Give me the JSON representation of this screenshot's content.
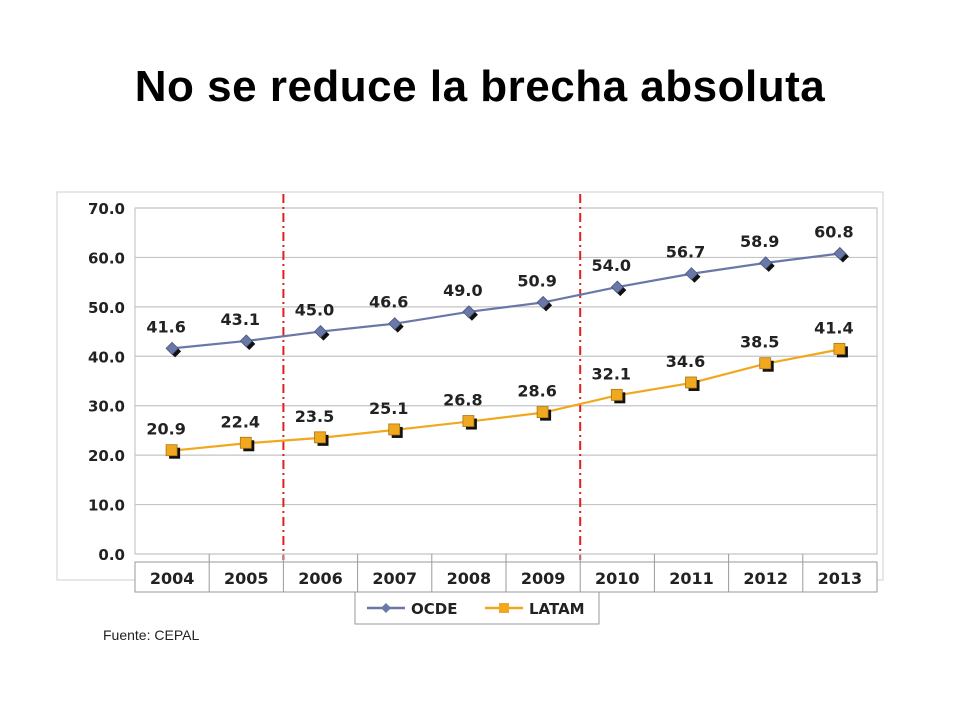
{
  "slide": {
    "title": "No se reduce la brecha absoluta",
    "source": "Fuente: CEPAL"
  },
  "chart_data": {
    "type": "line",
    "categories": [
      "2004",
      "2005",
      "2006",
      "2007",
      "2008",
      "2009",
      "2010",
      "2011",
      "2012",
      "2013"
    ],
    "series": [
      {
        "name": "OCDE",
        "color": "#6a78a8",
        "marker": "diamond",
        "values": [
          41.6,
          43.1,
          45.0,
          46.6,
          49.0,
          50.9,
          54.0,
          56.7,
          58.9,
          60.8
        ]
      },
      {
        "name": "LATAM",
        "color": "#f0a81e",
        "marker": "square",
        "values": [
          20.9,
          22.4,
          23.5,
          25.1,
          26.8,
          28.6,
          32.1,
          34.6,
          38.5,
          41.4
        ]
      }
    ],
    "y_ticks": [
      "0.0",
      "10.0",
      "20.0",
      "30.0",
      "40.0",
      "50.0",
      "60.0",
      "70.0"
    ],
    "ylim": [
      0,
      70
    ],
    "grid": "horizontal",
    "legend": "bottom",
    "reference_lines": {
      "color": "#e02020",
      "style": "dash-dot",
      "between_categories": [
        [
          "2005",
          "2006"
        ],
        [
          "2009",
          "2010"
        ]
      ]
    }
  }
}
